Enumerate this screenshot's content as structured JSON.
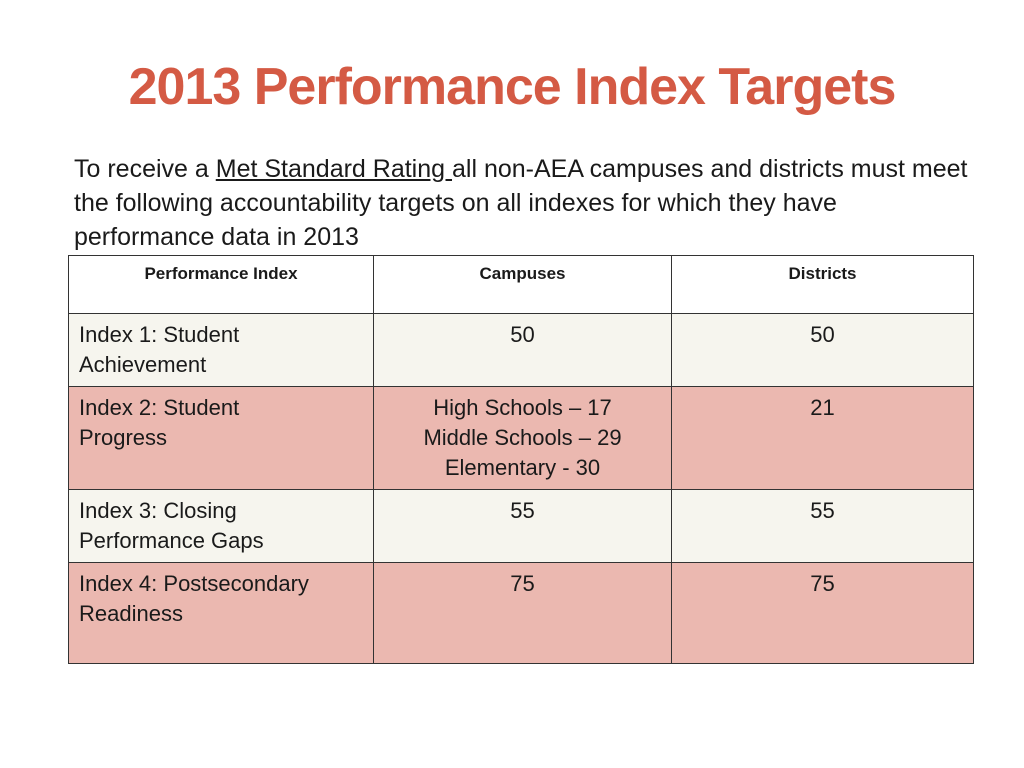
{
  "slide": {
    "title": "2013 Performance Index Targets",
    "intro_before": "To receive a ",
    "intro_link": "Met Standard Rating ",
    "intro_after": "all non-AEA campuses and districts must meet the following accountability targets on all indexes for which they have performance data in 2013"
  },
  "colors": {
    "title": "#d45a44",
    "row_light": "#f6f5ee",
    "row_pink": "#ebb8b0",
    "border": "#333333"
  },
  "table": {
    "headers": [
      "Performance Index",
      "Campuses",
      "Districts"
    ],
    "rows": [
      {
        "index_lines": [
          "Index 1: Student",
          "Achievement"
        ],
        "campuses_lines": [
          "50"
        ],
        "districts": "50",
        "shade": "light"
      },
      {
        "index_lines": [
          "Index 2:  Student",
          "Progress"
        ],
        "campuses_lines": [
          "High Schools – 17",
          "Middle Schools – 29",
          "Elementary - 30"
        ],
        "districts": "21",
        "shade": "pink"
      },
      {
        "index_lines": [
          "Index 3:  Closing",
          "Performance Gaps"
        ],
        "campuses_lines": [
          "55"
        ],
        "districts": "55",
        "shade": "light"
      },
      {
        "index_lines": [
          "Index 4:  Postsecondary",
          "Readiness"
        ],
        "campuses_lines": [
          "75"
        ],
        "districts": "75",
        "shade": "pink"
      }
    ]
  }
}
